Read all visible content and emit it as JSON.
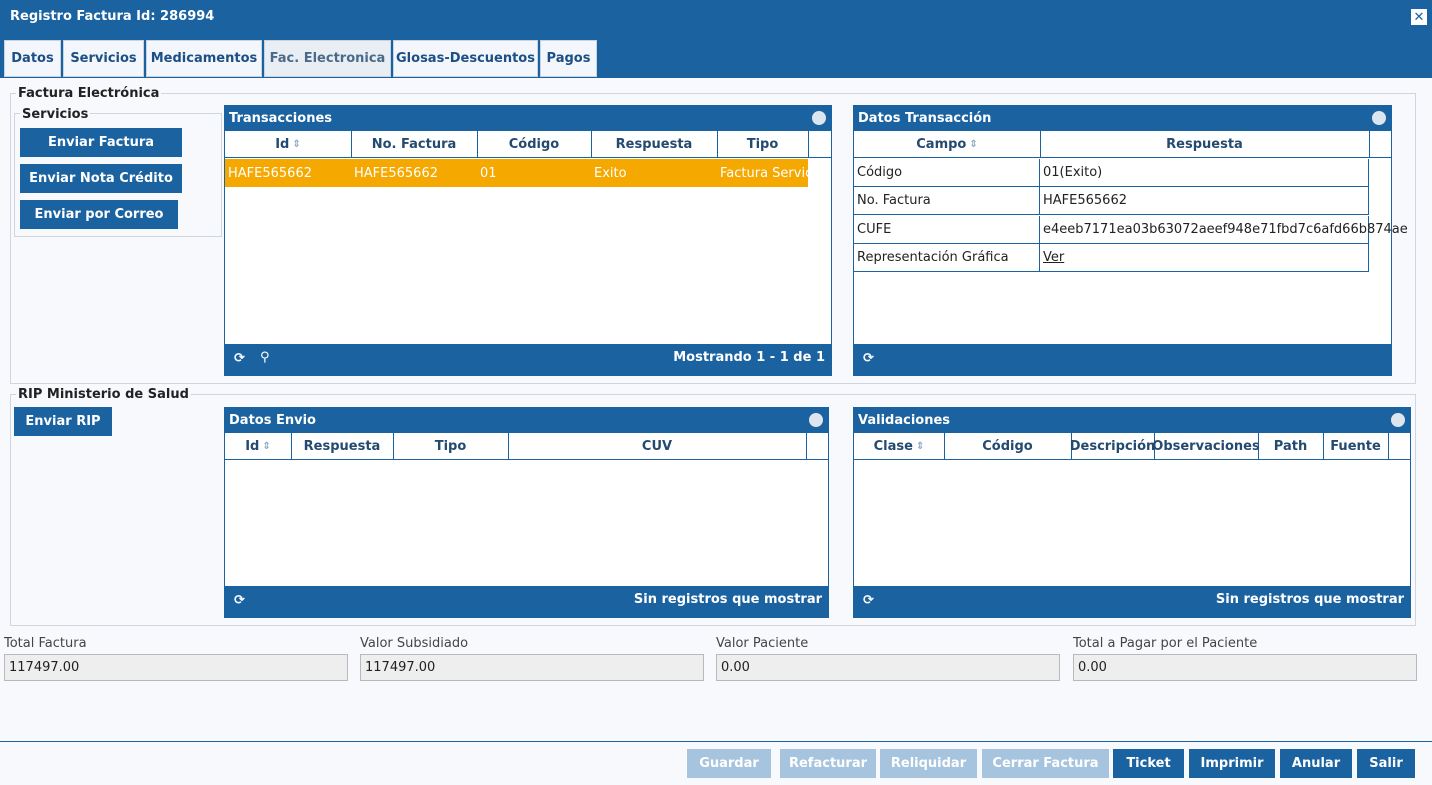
{
  "window": {
    "title": "Registro Factura Id: 286994"
  },
  "tabs": [
    "Datos",
    "Servicios",
    "Medicamentos",
    "Fac. Electronica",
    "Glosas-Descuentos",
    "Pagos"
  ],
  "factura_electronica": {
    "legend": "Factura Electrónica",
    "servicios": {
      "legend": "Servicios",
      "buttons": [
        "Enviar Factura",
        "Enviar Nota Crédito",
        "Enviar por Correo"
      ]
    },
    "transacciones": {
      "title": "Transacciones",
      "columns": [
        "Id",
        "No. Factura",
        "Código",
        "Respuesta",
        "Tipo"
      ],
      "rows": [
        [
          "HAFE565662",
          "HAFE565662",
          "01",
          "Exito",
          "Factura Servic"
        ]
      ],
      "footer": "Mostrando 1 - 1 de 1"
    },
    "datos_transaccion": {
      "title": "Datos Transacción",
      "columns": [
        "Campo",
        "Respuesta"
      ],
      "rows": [
        [
          "Código",
          "01(Exito)"
        ],
        [
          "No. Factura",
          "HAFE565662"
        ],
        [
          "CUFE",
          "e4eeb7171ea03b63072aeef948e71fbd7c6afd66b874ae"
        ],
        [
          "Representación Gráfica",
          "Ver"
        ]
      ]
    }
  },
  "rip": {
    "legend": "RIP Ministerio de Salud",
    "button": "Enviar RIP",
    "datos_envio": {
      "title": "Datos Envio",
      "columns": [
        "Id",
        "Respuesta",
        "Tipo",
        "CUV"
      ],
      "footer": "Sin registros que mostrar"
    },
    "validaciones": {
      "title": "Validaciones",
      "columns": [
        "Clase",
        "Código",
        "Descripción",
        "Observaciones",
        "Path",
        "Fuente"
      ],
      "footer": "Sin registros que mostrar"
    }
  },
  "totals": [
    {
      "label": "Total Factura",
      "value": "117497.00"
    },
    {
      "label": "Valor Subsidiado",
      "value": "117497.00"
    },
    {
      "label": "Valor Paciente",
      "value": "0.00"
    },
    {
      "label": "Total a Pagar por el Paciente",
      "value": "0.00"
    }
  ],
  "actions": [
    "Guardar",
    "Refacturar",
    "Reliquidar",
    "Cerrar Factura",
    "Ticket",
    "Imprimir",
    "Anular",
    "Salir"
  ]
}
